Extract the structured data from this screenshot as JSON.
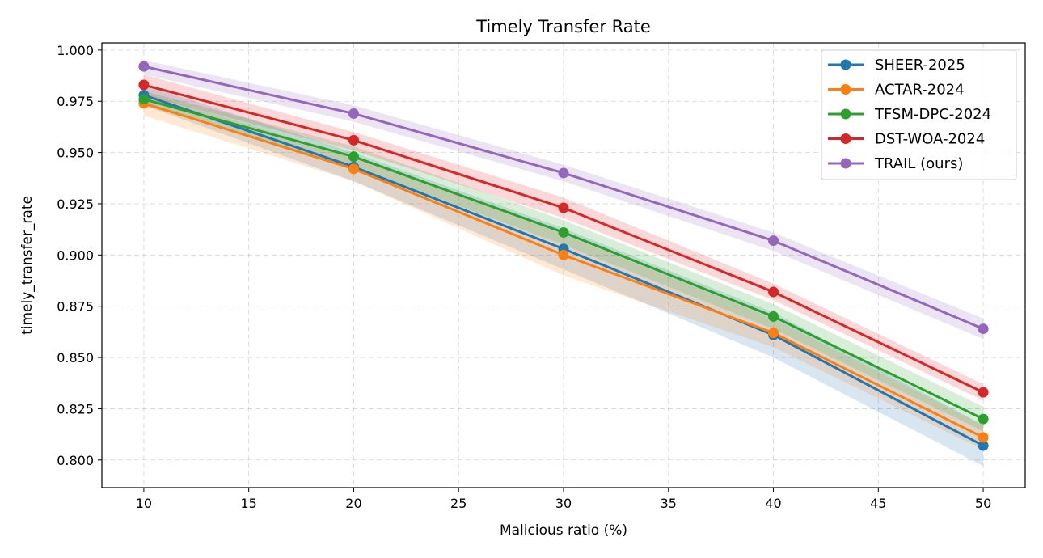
{
  "chart_data": {
    "type": "line",
    "title": "Timely Transfer Rate",
    "xlabel": "Malicious ratio (%)",
    "ylabel": "timely_transfer_rate",
    "x": [
      10,
      20,
      30,
      40,
      50
    ],
    "xlim": [
      8,
      52
    ],
    "ylim": [
      0.7865,
      1.0035
    ],
    "xticks": [
      10,
      15,
      20,
      25,
      30,
      35,
      40,
      45,
      50
    ],
    "yticks": [
      0.8,
      0.825,
      0.85,
      0.875,
      0.9,
      0.925,
      0.95,
      0.975,
      1.0
    ],
    "xtick_labels": [
      "10",
      "15",
      "20",
      "25",
      "30",
      "35",
      "40",
      "45",
      "50"
    ],
    "ytick_labels": [
      "0.800",
      "0.825",
      "0.850",
      "0.875",
      "0.900",
      "0.925",
      "0.950",
      "0.975",
      "1.000"
    ],
    "grid": true,
    "legend_position": "top-right",
    "series": [
      {
        "name": "SHEER-2025",
        "color": "#1f77b4",
        "values": [
          0.978,
          0.943,
          0.903,
          0.861,
          0.807
        ],
        "band_lower": [
          0.973,
          0.936,
          0.893,
          0.85,
          0.797
        ],
        "band_upper": [
          0.983,
          0.95,
          0.913,
          0.872,
          0.817
        ]
      },
      {
        "name": "ACTAR-2024",
        "color": "#ff7f0e",
        "values": [
          0.974,
          0.942,
          0.9,
          0.862,
          0.811
        ],
        "band_lower": [
          0.968,
          0.936,
          0.89,
          0.855,
          0.805
        ],
        "band_upper": [
          0.979,
          0.948,
          0.91,
          0.869,
          0.817
        ]
      },
      {
        "name": "TFSM-DPC-2024",
        "color": "#2ca02c",
        "values": [
          0.976,
          0.948,
          0.911,
          0.87,
          0.82
        ],
        "band_lower": [
          0.973,
          0.943,
          0.905,
          0.864,
          0.814
        ],
        "band_upper": [
          0.98,
          0.953,
          0.917,
          0.876,
          0.826
        ]
      },
      {
        "name": "DST-WOA-2024",
        "color": "#d62728",
        "values": [
          0.983,
          0.956,
          0.923,
          0.882,
          0.833
        ],
        "band_lower": [
          0.978,
          0.951,
          0.918,
          0.878,
          0.829
        ],
        "band_upper": [
          0.988,
          0.96,
          0.928,
          0.886,
          0.837
        ]
      },
      {
        "name": "TRAIL (ours)",
        "color": "#9467bd",
        "values": [
          0.992,
          0.969,
          0.94,
          0.907,
          0.864
        ],
        "band_lower": [
          0.988,
          0.965,
          0.936,
          0.902,
          0.859
        ],
        "band_upper": [
          0.995,
          0.973,
          0.944,
          0.911,
          0.869
        ]
      }
    ]
  }
}
